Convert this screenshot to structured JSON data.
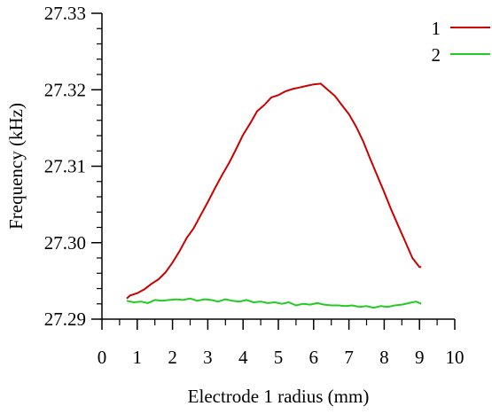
{
  "chart_data": {
    "type": "line",
    "title": "",
    "xlabel": "Electrode 1 radius (mm)",
    "ylabel": "Frequency (kHz)",
    "xlim": [
      0,
      10
    ],
    "ylim": [
      27.29,
      27.33
    ],
    "x_ticks": [
      "0",
      "1",
      "2",
      "3",
      "4",
      "5",
      "6",
      "7",
      "8",
      "9",
      "10"
    ],
    "y_ticks": [
      "27.29",
      "27.30",
      "27.31",
      "27.32",
      "27.33"
    ],
    "grid": false,
    "legend_position": "top-right",
    "series": [
      {
        "name": "1",
        "color": "#cc0000",
        "x": [
          0.7,
          0.8,
          1.0,
          1.2,
          1.4,
          1.6,
          1.8,
          2.0,
          2.2,
          2.4,
          2.6,
          2.8,
          3.0,
          3.2,
          3.4,
          3.6,
          3.8,
          4.0,
          4.2,
          4.4,
          4.6,
          4.8,
          5.0,
          5.2,
          5.4,
          5.6,
          5.8,
          6.0,
          6.2,
          6.3,
          6.4,
          6.6,
          6.8,
          7.0,
          7.2,
          7.4,
          7.6,
          7.8,
          8.0,
          8.2,
          8.4,
          8.6,
          8.8,
          9.0,
          9.05
        ],
        "values": [
          27.2927,
          27.2931,
          27.2934,
          27.2939,
          27.2946,
          27.2952,
          27.2961,
          27.2974,
          27.2989,
          27.3006,
          27.3019,
          27.3036,
          27.3053,
          27.3071,
          27.3088,
          27.3104,
          27.3122,
          27.3141,
          27.3156,
          27.3172,
          27.318,
          27.319,
          27.3193,
          27.3198,
          27.3201,
          27.3203,
          27.3205,
          27.3207,
          27.3208,
          27.3204,
          27.32,
          27.3192,
          27.318,
          27.3168,
          27.3152,
          27.3133,
          27.311,
          27.3088,
          27.3066,
          27.3043,
          27.3022,
          27.3001,
          27.298,
          27.2968,
          27.2968
        ]
      },
      {
        "name": "2",
        "color": "#22cc22",
        "x": [
          0.7,
          0.9,
          1.1,
          1.3,
          1.5,
          1.7,
          1.9,
          2.1,
          2.3,
          2.5,
          2.7,
          2.9,
          3.1,
          3.3,
          3.5,
          3.7,
          3.9,
          4.1,
          4.3,
          4.5,
          4.7,
          4.9,
          5.1,
          5.3,
          5.5,
          5.7,
          5.9,
          6.1,
          6.3,
          6.5,
          6.7,
          6.9,
          7.1,
          7.3,
          7.5,
          7.7,
          7.9,
          8.1,
          8.3,
          8.5,
          8.7,
          8.9,
          9.05
        ],
        "values": [
          27.2924,
          27.2922,
          27.2923,
          27.2921,
          27.2925,
          27.2924,
          27.2925,
          27.2926,
          27.2925,
          27.2927,
          27.2924,
          27.2926,
          27.2925,
          27.2923,
          27.2926,
          27.2924,
          27.2923,
          27.2925,
          27.2922,
          27.2923,
          27.2921,
          27.2922,
          27.292,
          27.2922,
          27.2918,
          27.292,
          27.2919,
          27.2921,
          27.2919,
          27.2918,
          27.2918,
          27.2917,
          27.2918,
          27.2916,
          27.2917,
          27.2915,
          27.2917,
          27.2916,
          27.2918,
          27.2919,
          27.2921,
          27.2923,
          27.292
        ]
      }
    ]
  }
}
